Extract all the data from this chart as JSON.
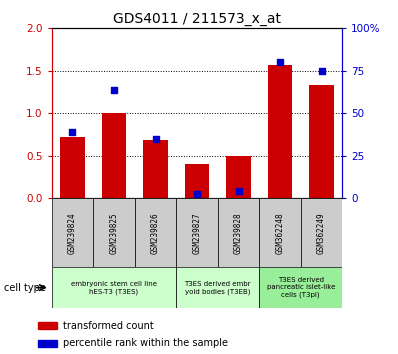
{
  "title": "GDS4011 / 211573_x_at",
  "samples": [
    "GSM239824",
    "GSM239825",
    "GSM239826",
    "GSM239827",
    "GSM239828",
    "GSM362248",
    "GSM362249"
  ],
  "transformed_count": [
    0.72,
    1.0,
    0.68,
    0.4,
    0.5,
    1.57,
    1.33
  ],
  "percentile_rank_pct": [
    39,
    63.5,
    35,
    2.5,
    4,
    80,
    75
  ],
  "ylim_left": [
    0,
    2
  ],
  "ylim_right": [
    0,
    100
  ],
  "yticks_left": [
    0,
    0.5,
    1.0,
    1.5,
    2
  ],
  "yticks_right": [
    0,
    25,
    50,
    75,
    100
  ],
  "bar_color": "#cc0000",
  "dot_color": "#0000cc",
  "bar_width": 0.6,
  "legend_tc": "transformed count",
  "legend_pr": "percentile rank within the sample",
  "left_axis_color": "#cc0000",
  "right_axis_color": "#0000cc",
  "sample_box_color": "#cccccc",
  "ct_groups": [
    {
      "label": "embryonic stem cell line\nhES-T3 (T3ES)",
      "start": 0,
      "end": 2,
      "color": "#ccffcc"
    },
    {
      "label": "T3ES derived embr\nyoid bodies (T3EB)",
      "start": 3,
      "end": 4,
      "color": "#ccffcc"
    },
    {
      "label": "T3ES derived\npancreatic islet-like\ncells (T3pi)",
      "start": 5,
      "end": 6,
      "color": "#99ee99"
    }
  ],
  "cell_type_label": "cell type"
}
